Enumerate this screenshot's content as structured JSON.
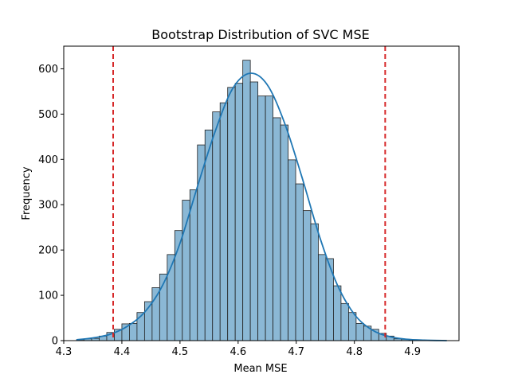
{
  "chart_data": {
    "type": "bar",
    "title": "Bootstrap Distribution of SVC MSE",
    "xlabel": "Mean MSE",
    "ylabel": "Frequency",
    "xlim": [
      4.3,
      4.98
    ],
    "ylim": [
      0,
      650
    ],
    "xticks": [
      4.3,
      4.4,
      4.5,
      4.6,
      4.7,
      4.8,
      4.9
    ],
    "yticks": [
      0,
      100,
      200,
      300,
      400,
      500,
      600
    ],
    "grid": false,
    "bin_edges": [
      4.322,
      4.335,
      4.348,
      4.361,
      4.374,
      4.387,
      4.4,
      4.413,
      4.426,
      4.439,
      4.452,
      4.465,
      4.478,
      4.491,
      4.504,
      4.517,
      4.53,
      4.543,
      4.556,
      4.569,
      4.582,
      4.595,
      4.608,
      4.621,
      4.634,
      4.647,
      4.66,
      4.673,
      4.686,
      4.699,
      4.712,
      4.725,
      4.738,
      4.751,
      4.764,
      4.777,
      4.79,
      4.803,
      4.816,
      4.829,
      4.842,
      4.855,
      4.868,
      4.881,
      4.894,
      4.907,
      4.92,
      4.933,
      4.946,
      4.959
    ],
    "counts": [
      2,
      4,
      5,
      10,
      18,
      25,
      37,
      38,
      62,
      86,
      117,
      147,
      190,
      243,
      310,
      333,
      432,
      465,
      505,
      525,
      559,
      568,
      619,
      571,
      540,
      540,
      492,
      476,
      399,
      346,
      287,
      258,
      190,
      181,
      121,
      82,
      62,
      38,
      32,
      25,
      16,
      10,
      4,
      3,
      1,
      1,
      0,
      0,
      0
    ],
    "kde": {
      "x": [
        4.322,
        4.35,
        4.38,
        4.41,
        4.44,
        4.47,
        4.5,
        4.53,
        4.56,
        4.59,
        4.62,
        4.65,
        4.68,
        4.71,
        4.74,
        4.77,
        4.8,
        4.83,
        4.86,
        4.89,
        4.92,
        4.959
      ],
      "y": [
        2,
        6,
        14,
        32,
        64,
        122,
        215,
        340,
        460,
        555,
        590,
        565,
        480,
        360,
        230,
        125,
        58,
        24,
        9,
        3,
        1,
        0
      ]
    },
    "reference_lines": [
      4.385,
      4.853
    ],
    "bar_color": "#8bb8d5",
    "kde_color": "#1f77b4",
    "reference_line_color": "#d62728"
  }
}
